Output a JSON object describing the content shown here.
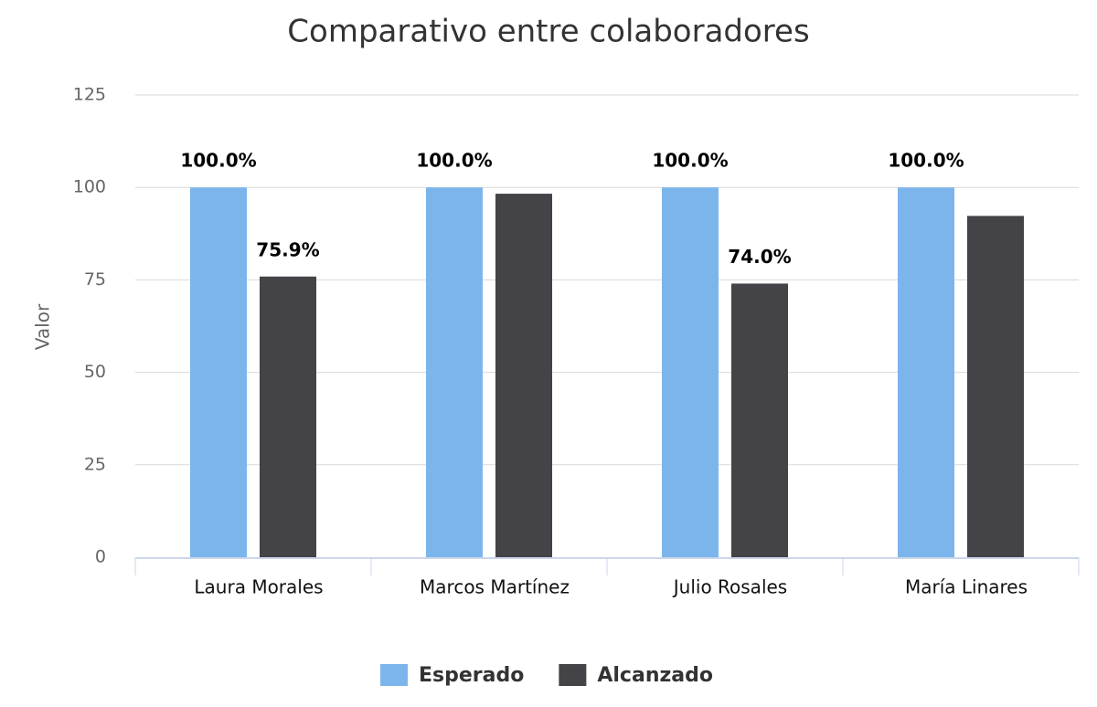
{
  "chart_data": {
    "type": "bar",
    "title": "Comparativo entre colaboradores",
    "y_axis_label": "Valor",
    "categories": [
      "Laura Morales",
      "Marcos Martínez",
      "Julio Rosales",
      "María Linares"
    ],
    "series": [
      {
        "name": "Esperado",
        "color": "#7cb5ec",
        "values": [
          100,
          100,
          100,
          100
        ],
        "value_labels": [
          "100.0%",
          "100.0%",
          "100.0%",
          "100.0%"
        ]
      },
      {
        "name": "Alcanzado",
        "color": "#434348",
        "values": [
          75.9,
          98.3,
          74.0,
          92.3
        ],
        "value_labels": [
          "75.9%",
          null,
          "74.0%",
          null
        ]
      }
    ],
    "ylim": [
      0,
      125
    ],
    "yticks": [
      0,
      25,
      50,
      75,
      100,
      125
    ],
    "grid": true,
    "legend": "bottom"
  }
}
